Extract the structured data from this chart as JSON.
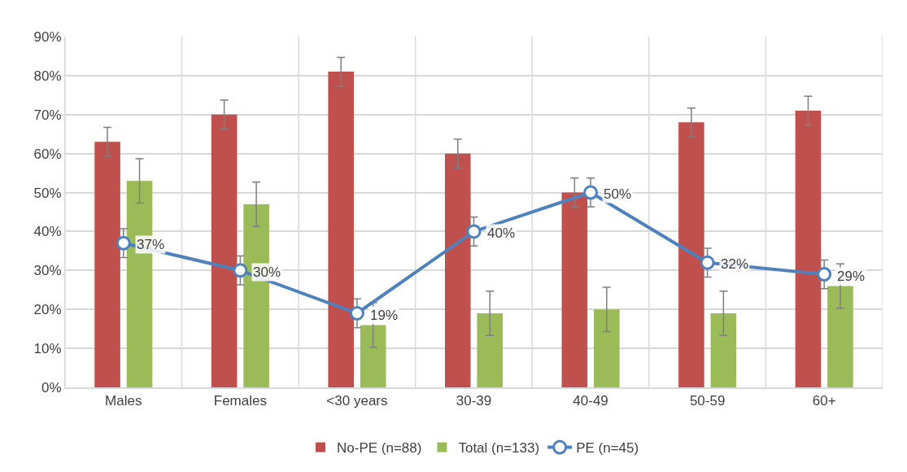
{
  "chart_data": {
    "type": "bar",
    "categories": [
      "Males",
      "Females",
      "<30 years",
      "30-39",
      "40-49",
      "50-59",
      "60+"
    ],
    "series": [
      {
        "name": "No-PE (n=88)",
        "color": "#c0504d",
        "values": [
          63,
          70,
          81,
          60,
          50,
          68,
          71
        ],
        "errors": [
          3.7,
          3.7,
          3.7,
          3.7,
          3.7,
          3.7,
          3.7
        ]
      },
      {
        "name": "Total (n=133)",
        "color": "#9bbb59",
        "values": [
          53,
          47,
          16,
          19,
          20,
          19,
          26
        ],
        "errors": [
          5.7,
          5.7,
          5.7,
          5.7,
          5.7,
          5.7,
          5.7
        ]
      },
      {
        "name": "PE (n=45)",
        "type": "line",
        "color": "#4f81bd",
        "values": [
          37,
          30,
          19,
          40,
          50,
          32,
          29
        ],
        "errors": [
          3.7,
          3.7,
          3.7,
          3.7,
          3.7,
          3.7,
          3.7
        ],
        "value_labels": [
          "37%",
          "30%",
          "19%",
          "40%",
          "50%",
          "32%",
          "29%"
        ],
        "marker": "circle",
        "line_style": "solid"
      }
    ],
    "ylim": [
      0,
      90
    ],
    "yticks": [
      {
        "value": 0,
        "label": "0%"
      },
      {
        "value": 10,
        "label": "10%"
      },
      {
        "value": 20,
        "label": "20%"
      },
      {
        "value": 30,
        "label": "30%"
      },
      {
        "value": 40,
        "label": "40%"
      },
      {
        "value": 50,
        "label": "50%"
      },
      {
        "value": 60,
        "label": "60%"
      },
      {
        "value": 70,
        "label": "70%"
      },
      {
        "value": 80,
        "label": "80%"
      },
      {
        "value": 90,
        "label": "90%"
      }
    ],
    "grid": true,
    "legend": "bottom"
  }
}
